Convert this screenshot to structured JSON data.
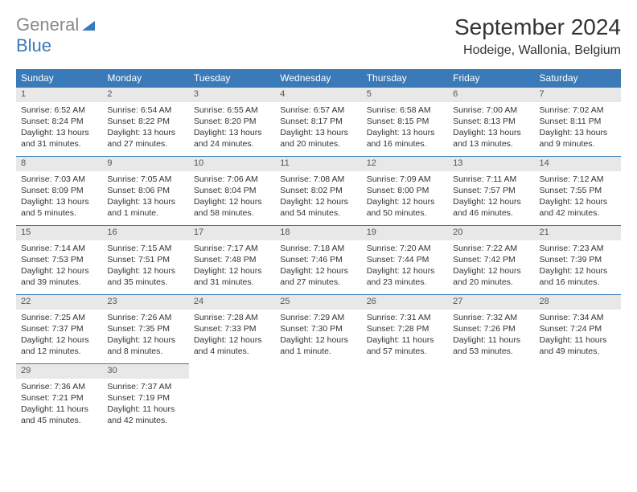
{
  "logo": {
    "word1": "General",
    "word2": "Blue"
  },
  "title": "September 2024",
  "location": "Hodeige, Wallonia, Belgium",
  "colors": {
    "header_bg": "#3a7ab8",
    "header_text": "#ffffff",
    "daynum_bg": "#e8e8e8",
    "row_divider": "#3a7ab8",
    "logo_gray": "#888888",
    "logo_blue": "#3a7ab8",
    "page_bg": "#ffffff",
    "body_text": "#333333"
  },
  "weekdays": [
    "Sunday",
    "Monday",
    "Tuesday",
    "Wednesday",
    "Thursday",
    "Friday",
    "Saturday"
  ],
  "days": [
    {
      "n": 1,
      "sunrise": "6:52 AM",
      "sunset": "8:24 PM",
      "daylight": "13 hours and 31 minutes."
    },
    {
      "n": 2,
      "sunrise": "6:54 AM",
      "sunset": "8:22 PM",
      "daylight": "13 hours and 27 minutes."
    },
    {
      "n": 3,
      "sunrise": "6:55 AM",
      "sunset": "8:20 PM",
      "daylight": "13 hours and 24 minutes."
    },
    {
      "n": 4,
      "sunrise": "6:57 AM",
      "sunset": "8:17 PM",
      "daylight": "13 hours and 20 minutes."
    },
    {
      "n": 5,
      "sunrise": "6:58 AM",
      "sunset": "8:15 PM",
      "daylight": "13 hours and 16 minutes."
    },
    {
      "n": 6,
      "sunrise": "7:00 AM",
      "sunset": "8:13 PM",
      "daylight": "13 hours and 13 minutes."
    },
    {
      "n": 7,
      "sunrise": "7:02 AM",
      "sunset": "8:11 PM",
      "daylight": "13 hours and 9 minutes."
    },
    {
      "n": 8,
      "sunrise": "7:03 AM",
      "sunset": "8:09 PM",
      "daylight": "13 hours and 5 minutes."
    },
    {
      "n": 9,
      "sunrise": "7:05 AM",
      "sunset": "8:06 PM",
      "daylight": "13 hours and 1 minute."
    },
    {
      "n": 10,
      "sunrise": "7:06 AM",
      "sunset": "8:04 PM",
      "daylight": "12 hours and 58 minutes."
    },
    {
      "n": 11,
      "sunrise": "7:08 AM",
      "sunset": "8:02 PM",
      "daylight": "12 hours and 54 minutes."
    },
    {
      "n": 12,
      "sunrise": "7:09 AM",
      "sunset": "8:00 PM",
      "daylight": "12 hours and 50 minutes."
    },
    {
      "n": 13,
      "sunrise": "7:11 AM",
      "sunset": "7:57 PM",
      "daylight": "12 hours and 46 minutes."
    },
    {
      "n": 14,
      "sunrise": "7:12 AM",
      "sunset": "7:55 PM",
      "daylight": "12 hours and 42 minutes."
    },
    {
      "n": 15,
      "sunrise": "7:14 AM",
      "sunset": "7:53 PM",
      "daylight": "12 hours and 39 minutes."
    },
    {
      "n": 16,
      "sunrise": "7:15 AM",
      "sunset": "7:51 PM",
      "daylight": "12 hours and 35 minutes."
    },
    {
      "n": 17,
      "sunrise": "7:17 AM",
      "sunset": "7:48 PM",
      "daylight": "12 hours and 31 minutes."
    },
    {
      "n": 18,
      "sunrise": "7:18 AM",
      "sunset": "7:46 PM",
      "daylight": "12 hours and 27 minutes."
    },
    {
      "n": 19,
      "sunrise": "7:20 AM",
      "sunset": "7:44 PM",
      "daylight": "12 hours and 23 minutes."
    },
    {
      "n": 20,
      "sunrise": "7:22 AM",
      "sunset": "7:42 PM",
      "daylight": "12 hours and 20 minutes."
    },
    {
      "n": 21,
      "sunrise": "7:23 AM",
      "sunset": "7:39 PM",
      "daylight": "12 hours and 16 minutes."
    },
    {
      "n": 22,
      "sunrise": "7:25 AM",
      "sunset": "7:37 PM",
      "daylight": "12 hours and 12 minutes."
    },
    {
      "n": 23,
      "sunrise": "7:26 AM",
      "sunset": "7:35 PM",
      "daylight": "12 hours and 8 minutes."
    },
    {
      "n": 24,
      "sunrise": "7:28 AM",
      "sunset": "7:33 PM",
      "daylight": "12 hours and 4 minutes."
    },
    {
      "n": 25,
      "sunrise": "7:29 AM",
      "sunset": "7:30 PM",
      "daylight": "12 hours and 1 minute."
    },
    {
      "n": 26,
      "sunrise": "7:31 AM",
      "sunset": "7:28 PM",
      "daylight": "11 hours and 57 minutes."
    },
    {
      "n": 27,
      "sunrise": "7:32 AM",
      "sunset": "7:26 PM",
      "daylight": "11 hours and 53 minutes."
    },
    {
      "n": 28,
      "sunrise": "7:34 AM",
      "sunset": "7:24 PM",
      "daylight": "11 hours and 49 minutes."
    },
    {
      "n": 29,
      "sunrise": "7:36 AM",
      "sunset": "7:21 PM",
      "daylight": "11 hours and 45 minutes."
    },
    {
      "n": 30,
      "sunrise": "7:37 AM",
      "sunset": "7:19 PM",
      "daylight": "11 hours and 42 minutes."
    }
  ],
  "labels": {
    "sunrise": "Sunrise:",
    "sunset": "Sunset:",
    "daylight": "Daylight:"
  },
  "layout": {
    "cols": 7,
    "first_weekday_offset": 0,
    "total_days": 30
  }
}
